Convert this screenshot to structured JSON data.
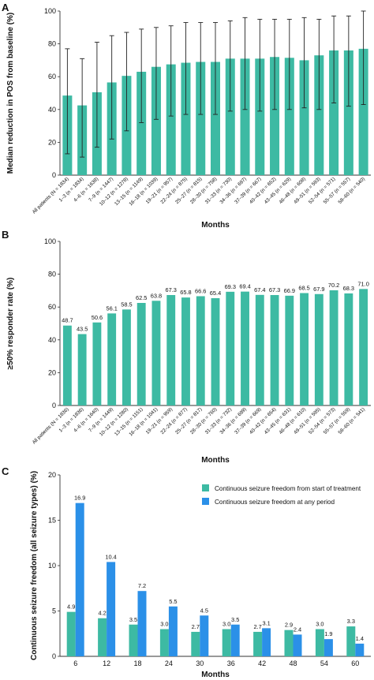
{
  "colors": {
    "teal": "#3dbaa3",
    "blue": "#2b90e8",
    "axis": "#333333",
    "error": "#222222"
  },
  "chart_data": [
    {
      "panel": "A",
      "type": "bar",
      "xlabel": "Months",
      "ylabel": "Median reduction in POS from baseline (%)",
      "ylim": [
        0,
        100
      ],
      "yticks": [
        0,
        20,
        40,
        60,
        80,
        100
      ],
      "error_bars": true,
      "categories": [
        "All patients (N = 1834)",
        "1–3 (n = 1834)",
        "4–6 (n = 1638)",
        "7–9 (n = 1447)",
        "10–12 (n = 1278)",
        "13–15 (n = 1149)",
        "16–18 (n = 1039)",
        "19–21 (n = 957)",
        "22–24 (n = 875)",
        "25–27 (n = 815)",
        "28–30 (n = 758)",
        "31–33 (n = 730)",
        "34–36 (n = 697)",
        "37–39 (n = 667)",
        "40–42 (n = 652)",
        "43–45 (n = 629)",
        "46–48 (n = 608)",
        "49–51 (n = 593)",
        "52–54 (n = 571)",
        "55–57 (n = 557)",
        "58–60 (n = 540)"
      ],
      "values": [
        48.5,
        42.5,
        50.5,
        56.5,
        60.5,
        63,
        66,
        67.5,
        68.5,
        69,
        69,
        71,
        71,
        71,
        72,
        71.5,
        70,
        73,
        76,
        76,
        77
      ],
      "error_low": [
        13,
        11,
        17,
        22,
        27,
        32,
        34,
        36,
        37,
        37,
        37,
        39,
        40,
        39,
        40,
        40,
        41,
        40,
        44,
        42,
        43
      ],
      "error_high": [
        77,
        71,
        81,
        85,
        87,
        89,
        90,
        91,
        93,
        93,
        93,
        94,
        96,
        95,
        95,
        95,
        96,
        95,
        97,
        97,
        100
      ]
    },
    {
      "panel": "B",
      "type": "bar",
      "xlabel": "Months",
      "ylabel": "≥50% responder rate (%)",
      "ylim": [
        0,
        100
      ],
      "yticks": [
        0,
        20,
        40,
        60,
        80,
        100
      ],
      "categories": [
        "All patients (N = 1836)",
        "1–3 (n = 1836)",
        "4–6 (n = 1640)",
        "7–9 (n = 1449)",
        "10–12 (n = 1280)",
        "13–15 (n = 1151)",
        "16–18 (n = 1041)",
        "19–21 (n = 959)",
        "22–24 (n = 877)",
        "25–27 (n = 817)",
        "28–30 (n = 760)",
        "31–33 (n = 732)",
        "34–36 (n = 699)",
        "37–39 (n = 669)",
        "40–42 (n = 654)",
        "43–45 (n = 631)",
        "46–48 (n = 610)",
        "49–51 (n = 595)",
        "52–54 (n = 573)",
        "55–57 (n = 559)",
        "58–60 (n = 541)"
      ],
      "values": [
        48.7,
        43.5,
        50.6,
        56.1,
        58.5,
        62.5,
        63.8,
        67.3,
        65.8,
        66.6,
        65.4,
        69.3,
        69.4,
        67.4,
        67.3,
        66.9,
        68.5,
        67.9,
        70.2,
        68.3,
        71.0
      ],
      "value_labels": [
        "48.7",
        "43.5",
        "50.6",
        "56.1",
        "58.5",
        "62.5",
        "63.8",
        "67.3",
        "65.8",
        "66.6",
        "65.4",
        "69.3",
        "69.4",
        "67.4",
        "67.3",
        "66.9",
        "68.5",
        "67.9",
        "70.2",
        "68.3",
        "71.0"
      ]
    },
    {
      "panel": "C",
      "type": "bar",
      "xlabel": "Months",
      "ylabel": "Continuous seizure freedom (all seizure types) (%)",
      "ylim": [
        0,
        20
      ],
      "yticks": [
        0,
        5,
        10,
        15,
        20
      ],
      "legend_position": "top-right",
      "categories": [
        "6",
        "12",
        "18",
        "24",
        "30",
        "36",
        "42",
        "48",
        "54",
        "60"
      ],
      "series": [
        {
          "name": "Continuous seizure freedom from start of treatment",
          "values": [
            4.9,
            4.2,
            3.5,
            3.0,
            2.7,
            3.0,
            2.7,
            2.9,
            3.0,
            3.3
          ],
          "labels": [
            "4.9",
            "4.2",
            "3.5",
            "3.0",
            "2.7",
            "3.0",
            "2.7",
            "2.9",
            "3.0",
            "3.3"
          ]
        },
        {
          "name": "Continuous seizure freedom at any period",
          "values": [
            16.9,
            10.4,
            7.2,
            5.5,
            4.5,
            3.5,
            3.1,
            2.4,
            1.9,
            1.4
          ],
          "labels": [
            "16.9",
            "10.4",
            "7.2",
            "5.5",
            "4.5",
            "3.5",
            "3.1",
            "2.4",
            "1.9",
            "1.4"
          ]
        }
      ]
    }
  ]
}
